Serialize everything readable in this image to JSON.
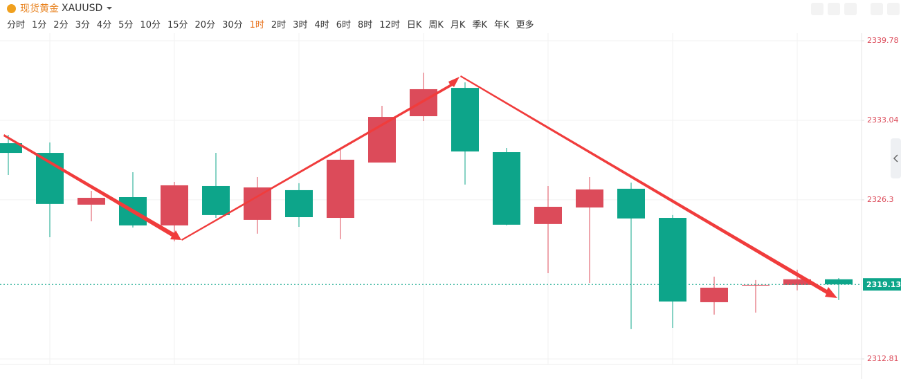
{
  "header": {
    "name": "现货黄金",
    "symbol": "XAUUSD",
    "intervals": [
      "分时",
      "1分",
      "2分",
      "3分",
      "4分",
      "5分",
      "10分",
      "15分",
      "20分",
      "30分",
      "1时",
      "2时",
      "3时",
      "4时",
      "6时",
      "8时",
      "12时",
      "日K",
      "周K",
      "月K",
      "季K",
      "年K",
      "更多"
    ],
    "active_interval": 10
  },
  "chart_data": {
    "type": "candlestick",
    "up_color": "#dc4b5a",
    "down_color": "#0da58a",
    "open": [
      2331.1,
      2330.28,
      2325.89,
      2326.53,
      2324.13,
      2327.47,
      2324.6,
      2327.12,
      2324.77,
      2329.46,
      2333.39,
      2335.79,
      2330.34,
      2324.25,
      2325.65,
      2327.24,
      2324.77,
      2317.62,
      2319.03,
      2319.09,
      2319.56
    ],
    "high": [
      2331.81,
      2331.16,
      2327.06,
      2328.64,
      2327.82,
      2330.28,
      2328.23,
      2327.71,
      2330.69,
      2334.27,
      2337.08,
      2336.26,
      2330.69,
      2327.47,
      2328.23,
      2327.76,
      2325.01,
      2319.79,
      2319.5,
      2320.38,
      2319.67
    ],
    "low": [
      2328.41,
      2323.13,
      2324.48,
      2323.95,
      2322.78,
      2324.77,
      2323.43,
      2324.01,
      2322.96,
      2329.46,
      2332.98,
      2327.59,
      2324.13,
      2320.08,
      2319.26,
      2315.34,
      2315.45,
      2316.57,
      2316.74,
      2318.62,
      2317.8
    ],
    "close": [
      2330.28,
      2325.95,
      2326.47,
      2324.13,
      2327.53,
      2325.01,
      2327.35,
      2324.83,
      2329.7,
      2333.33,
      2335.68,
      2330.4,
      2324.19,
      2325.71,
      2327.18,
      2324.72,
      2317.68,
      2318.85,
      2319.09,
      2319.56,
      2319.13
    ],
    "current_price": 2319.13,
    "ylim": [
      2312.34,
      2340.31
    ],
    "yticks": [
      2339.78,
      2333.04,
      2326.3,
      2312.81
    ],
    "grid": true
  }
}
